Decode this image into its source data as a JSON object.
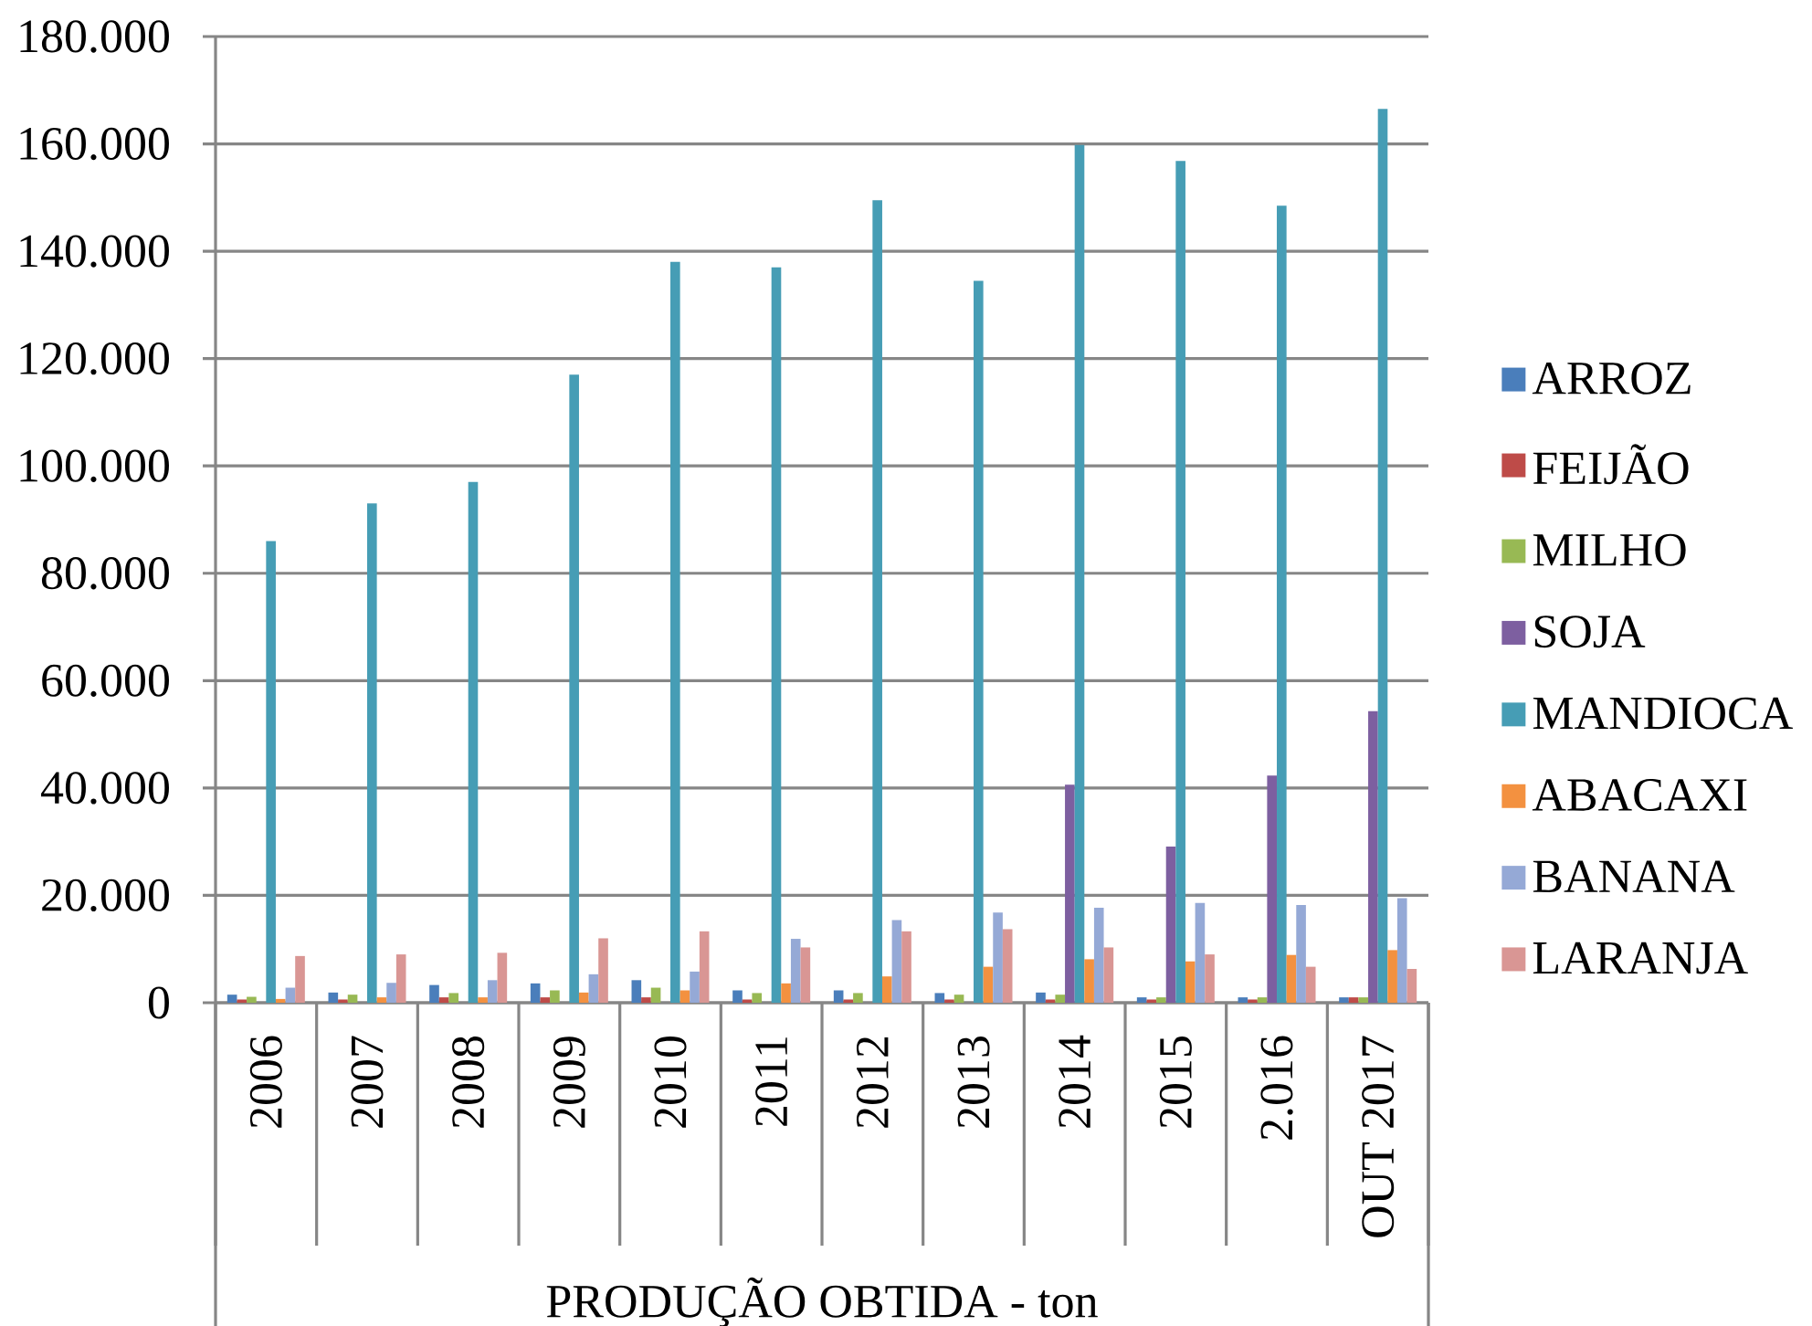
{
  "chart_data": {
    "type": "bar",
    "xlabel": "PRODUÇÃO OBTIDA - ton",
    "categories": [
      "2006",
      "2007",
      "2008",
      "2009",
      "2010",
      "2011",
      "2012",
      "2013",
      "2014",
      "2015",
      "2.016",
      "OUT 2017"
    ],
    "series": [
      {
        "name": "ARROZ",
        "color": "#4a7ebb",
        "values": [
          1500,
          1900,
          3300,
          3600,
          4200,
          2300,
          2300,
          1800,
          1900,
          1000,
          1000,
          1000
        ]
      },
      {
        "name": "FEIJÃO",
        "color": "#be4b48",
        "values": [
          600,
          600,
          1000,
          1000,
          1000,
          600,
          600,
          600,
          600,
          600,
          600,
          1000
        ]
      },
      {
        "name": "MILHO",
        "color": "#98b954",
        "values": [
          1100,
          1500,
          1800,
          2300,
          2800,
          1800,
          1800,
          1500,
          1500,
          1000,
          1000,
          1000
        ]
      },
      {
        "name": "SOJA",
        "color": "#7d5fa0",
        "values": [
          0,
          0,
          0,
          0,
          0,
          0,
          0,
          0,
          40600,
          29100,
          42300,
          54300
        ]
      },
      {
        "name": "MANDIOCA",
        "color": "#469db5",
        "values": [
          86000,
          93000,
          97000,
          117000,
          138000,
          137000,
          149500,
          134500,
          159800,
          156800,
          148500,
          166500
        ]
      },
      {
        "name": "ABACAXI",
        "color": "#f39140",
        "values": [
          700,
          1000,
          1000,
          1900,
          2300,
          3600,
          4900,
          6700,
          8100,
          7700,
          8900,
          9800
        ]
      },
      {
        "name": "BANANA",
        "color": "#95a9d6",
        "values": [
          2800,
          3700,
          4200,
          5300,
          5800,
          11900,
          15400,
          16800,
          17700,
          18600,
          18200,
          19500
        ]
      },
      {
        "name": "LARANJA",
        "color": "#d99694",
        "values": [
          8700,
          9000,
          9300,
          12000,
          13300,
          10300,
          13300,
          13700,
          10300,
          9000,
          6700,
          6300
        ]
      }
    ],
    "ylim": [
      0,
      180000
    ],
    "yticks": [
      0,
      {
        "value": 20000,
        "label": "20.000"
      },
      {
        "value": 40000,
        "label": "40.000"
      },
      {
        "value": 60000,
        "label": "60.000"
      },
      {
        "value": 80000,
        "label": "80.000"
      },
      {
        "value": 100000,
        "label": "100.000"
      },
      {
        "value": 120000,
        "label": "120.000"
      },
      {
        "value": 140000,
        "label": "140.000"
      },
      {
        "value": 160000,
        "label": "160.000"
      },
      {
        "value": 180000,
        "label": "180.000"
      }
    ],
    "grid": "y",
    "legend": "right"
  }
}
